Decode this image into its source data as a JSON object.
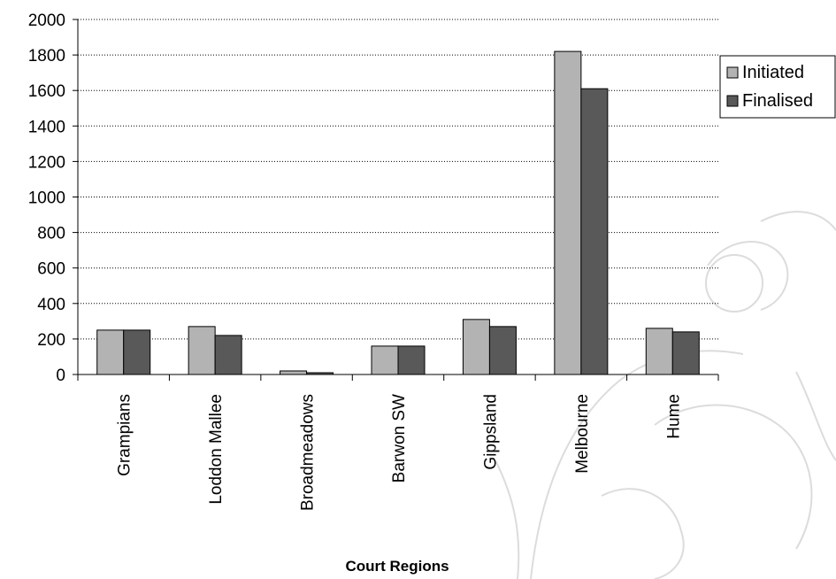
{
  "chart_data": {
    "type": "bar",
    "title": "",
    "xlabel": "Court Regions",
    "ylabel": "",
    "ylim": [
      0,
      2000
    ],
    "yticks": [
      0,
      200,
      400,
      600,
      800,
      1000,
      1200,
      1400,
      1600,
      1800,
      2000
    ],
    "grid": "horizontal dotted",
    "legend_position": "right",
    "categories": [
      "Grampians",
      "Loddon Mallee",
      "Broadmeadows",
      "Barwon SW",
      "Gippsland",
      "Melbourne",
      "Hume"
    ],
    "series": [
      {
        "name": "Initiated",
        "color": "#b3b3b3",
        "values": [
          250,
          270,
          20,
          160,
          310,
          1820,
          260
        ]
      },
      {
        "name": "Finalised",
        "color": "#595959",
        "values": [
          250,
          220,
          10,
          160,
          270,
          1610,
          240
        ]
      }
    ]
  }
}
